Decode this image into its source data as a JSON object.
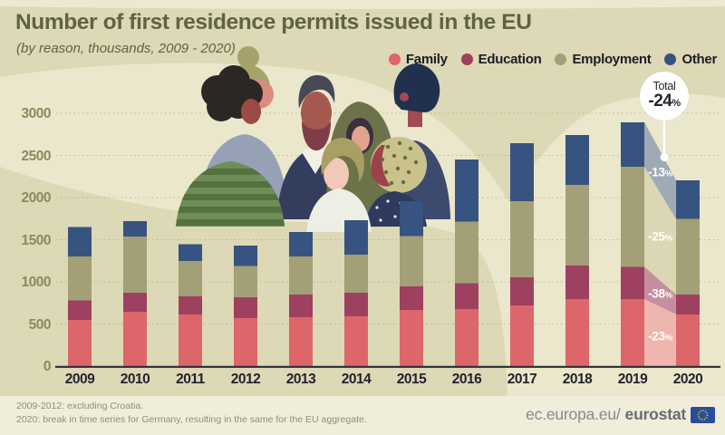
{
  "header": {
    "title": "Number of first residence permits issued in the EU",
    "subtitle": "(by reason, thousands, 2009 - 2020)"
  },
  "legend": {
    "items": [
      {
        "id": "family",
        "label": "Family",
        "color": "#dd666b"
      },
      {
        "id": "education",
        "label": "Education",
        "color": "#9e4060"
      },
      {
        "id": "employment",
        "label": "Employment",
        "color": "#a3a077"
      },
      {
        "id": "other",
        "label": "Other",
        "color": "#37537f"
      }
    ]
  },
  "chart_data": {
    "type": "stacked-bar",
    "title": "Number of first residence permits issued in the EU",
    "unit": "thousands",
    "categories": [
      2009,
      2010,
      2011,
      2012,
      2013,
      2014,
      2015,
      2016,
      2017,
      2018,
      2019,
      2020
    ],
    "series": [
      {
        "name": "Family",
        "color": "#dd666b",
        "connector_color": "#eeb2ab",
        "values": [
          550,
          645,
          615,
          570,
          580,
          590,
          665,
          675,
          720,
          795,
          795,
          615
        ]
      },
      {
        "name": "Education",
        "color": "#9e4060",
        "connector_color": "#c4879b",
        "values": [
          230,
          225,
          215,
          245,
          270,
          280,
          280,
          310,
          335,
          400,
          385,
          235
        ]
      },
      {
        "name": "Employment",
        "color": "#a3a077",
        "connector_color": "#d9d5b2",
        "values": [
          520,
          665,
          420,
          375,
          450,
          450,
          600,
          730,
          900,
          955,
          1185,
          895
        ]
      },
      {
        "name": "Other",
        "color": "#37537f",
        "connector_color": "#9aa5b4",
        "values": [
          350,
          185,
          195,
          240,
          290,
          410,
          410,
          735,
          690,
          590,
          530,
          460
        ]
      }
    ],
    "totals": [
      1650,
      1720,
      1445,
      1430,
      1590,
      1730,
      1955,
      2450,
      2645,
      2740,
      2895,
      2205
    ],
    "y_ticks": [
      0,
      500,
      1000,
      1500,
      2000,
      2500,
      3000
    ],
    "ylim": [
      0,
      3000
    ],
    "grid": "dotted-horizontal",
    "legend_position": "top-right"
  },
  "annotations": {
    "total_badge": {
      "title": "Total",
      "value": "-24",
      "unit": "%"
    },
    "segment_changes": [
      {
        "series": "Other",
        "value": "-13",
        "unit": "%"
      },
      {
        "series": "Employment",
        "value": "-25",
        "unit": "%"
      },
      {
        "series": "Education",
        "value": "-38",
        "unit": "%"
      },
      {
        "series": "Family",
        "value": "-23",
        "unit": "%"
      }
    ]
  },
  "footer": {
    "notes": [
      "2009-2012: excluding Croatia.",
      "2020: break in time series for Germany, resulting in the same for the EU aggregate."
    ],
    "site": {
      "prefix": "ec.europa.eu/",
      "bold": "eurostat"
    }
  },
  "colors": {
    "background": "#ddd8b5",
    "wave": "#ebe7cc",
    "top_strip": "#ece9d3",
    "title": "#5f6440",
    "axis_text": "#8c8a5e",
    "gridline": "#b5b08c",
    "year_text": "#23232c",
    "legend_text": "#1c1c26",
    "baseline": "#2c2c34",
    "footer_bg": "#f0edda",
    "footer_text": "#908e79",
    "site_text": "#858b91",
    "site_bold": "#676d73",
    "flag_blue": "#2a4d9b",
    "flag_stars": "#f7d117",
    "badge_bg": "#ffffff",
    "badge_text": "#26262e",
    "percent_text": "#ffffff"
  }
}
